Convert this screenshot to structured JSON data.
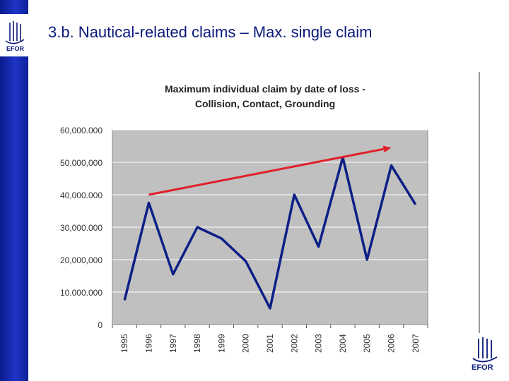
{
  "slide": {
    "title": "3.b. Nautical-related claims – Max. single claim",
    "logo_text": "EFOR"
  },
  "colors": {
    "sidebar": "#1a2fb8",
    "series_line": "#0d1f86",
    "trend_arrow": "#e0202a",
    "plot_bg": "#c0c0c0"
  },
  "chart_data": {
    "type": "line",
    "title": "Maximum individual claim by date of loss - Collision, Contact, Grounding",
    "title_line1": "Maximum individual claim by date of loss -",
    "title_line2": "Collision, Contact, Grounding",
    "x": [
      "1995",
      "1996",
      "1997",
      "1998",
      "1999",
      "2000",
      "2001",
      "2002",
      "2003",
      "2004",
      "2005",
      "2006",
      "2007"
    ],
    "series": [
      {
        "values": [
          7500000,
          37500000,
          15500000,
          30000000,
          26500000,
          19500000,
          5000000,
          40000000,
          24000000,
          51500000,
          20000000,
          49000000,
          37000000
        ]
      }
    ],
    "trend_arrow": {
      "from": {
        "x": "1996",
        "y": 40000000
      },
      "to": {
        "x": "2006",
        "y": 54500000
      }
    },
    "yticks": [
      0,
      10000000,
      20000000,
      30000000,
      40000000,
      50000000,
      60000000
    ],
    "ytick_labels": [
      "0",
      "10.000.000",
      "20,000,000",
      "30,000.000",
      "40,000.000",
      "50,000,000",
      "60,000.000"
    ],
    "ylim": [
      0,
      60000000
    ],
    "grid": true,
    "legend": "none"
  }
}
